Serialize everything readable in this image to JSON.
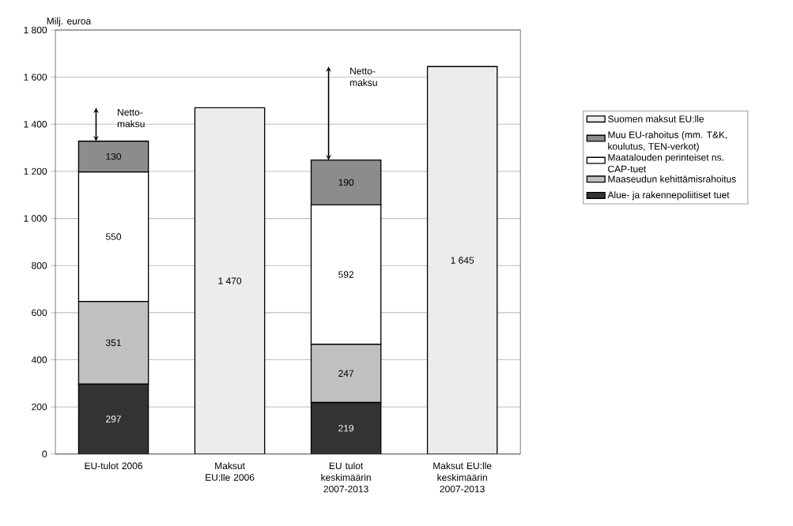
{
  "chart_data": {
    "type": "bar",
    "stacked": true,
    "ylabel": "Milj. euroa",
    "categories": [
      "EU-tulot 2006",
      "Maksut EU:lle 2006",
      "EU tulot keskimäärin 2007-2013",
      "Maksut EU:lle keskimäärin 2007-2013"
    ],
    "series": [
      {
        "name": "Alue- ja rakennepoliitiset tuet",
        "color": "#333333",
        "values": [
          297,
          null,
          219,
          null
        ],
        "value_labels": [
          "297",
          null,
          "219",
          null
        ]
      },
      {
        "name": "Maaseudun kehittämisrahoitus",
        "color": "#c0c0c0",
        "values": [
          351,
          null,
          247,
          null
        ],
        "value_labels": [
          "351",
          null,
          "247",
          null
        ]
      },
      {
        "name": "Maatalouden perinteiset ns. CAP-tuet",
        "color": "#ffffff",
        "values": [
          550,
          null,
          592,
          null
        ],
        "value_labels": [
          "550",
          null,
          "592",
          null
        ]
      },
      {
        "name": "Muu EU-rahoitus (mm. T&K, koulutus, TEN-verkot)",
        "color": "#8c8c8c",
        "values": [
          130,
          null,
          190,
          null
        ],
        "value_labels": [
          "130",
          null,
          "190",
          null
        ]
      },
      {
        "name": "Suomen maksut EU:lle",
        "color": "#ececec",
        "values": [
          null,
          1470,
          null,
          1645
        ],
        "value_labels": [
          null,
          "1 470",
          null,
          "1 645"
        ]
      }
    ],
    "ylim": [
      0,
      1800
    ],
    "yticks": [
      0,
      200,
      400,
      600,
      800,
      {
        "value": 1000,
        "label": "1 000"
      },
      {
        "value": 1200,
        "label": "1 200"
      },
      {
        "value": 1400,
        "label": "1 400"
      },
      {
        "value": 1600,
        "label": "1 600"
      },
      {
        "value": 1800,
        "label": "1 800"
      }
    ],
    "annotations": [
      "Netto-maksu",
      "Netto-maksu"
    ],
    "grid": "y",
    "legend": "right"
  }
}
